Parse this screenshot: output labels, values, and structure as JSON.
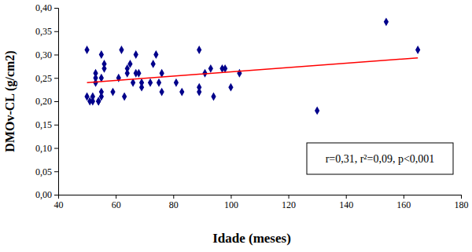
{
  "chart_data": {
    "type": "scatter",
    "x_label": "Idade (meses)",
    "y_label": "DMOv-CL (g/cm2)",
    "annotation": "r=0,31, r²=0,09, p<0,001",
    "xlim": [
      40,
      180
    ],
    "xticks": [
      40,
      60,
      80,
      100,
      120,
      140,
      160,
      180
    ],
    "ylim": [
      0,
      0.4
    ],
    "yticks": [
      {
        "value": 0,
        "label": "0,00"
      },
      {
        "value": 0.05,
        "label": "0,05"
      },
      {
        "value": 0.1,
        "label": "0,10"
      },
      {
        "value": 0.15,
        "label": "0,15"
      },
      {
        "value": 0.2,
        "label": "0,20"
      },
      {
        "value": 0.25,
        "label": "0,25"
      },
      {
        "value": 0.3,
        "label": "0,30"
      },
      {
        "value": 0.35,
        "label": "0,35"
      },
      {
        "value": 0.4,
        "label": "0,40"
      }
    ],
    "series": [
      {
        "type": "scatter",
        "color": "#00008b",
        "marker": "diamond",
        "x": [
          50,
          50,
          51,
          52,
          52,
          53,
          53,
          53,
          54,
          54,
          55,
          55,
          55,
          55,
          56,
          56,
          59,
          61,
          62,
          63,
          64,
          64,
          65,
          66,
          67,
          67,
          68,
          69,
          69,
          72,
          73,
          74,
          75,
          76,
          76,
          81,
          83,
          89,
          89,
          89,
          91,
          93,
          94,
          97,
          98,
          100,
          103,
          130,
          154,
          165
        ],
        "values": [
          0.21,
          0.31,
          0.2,
          0.21,
          0.2,
          0.24,
          0.25,
          0.26,
          0.2,
          0.2,
          0.21,
          0.25,
          0.3,
          0.22,
          0.27,
          0.28,
          0.22,
          0.25,
          0.31,
          0.21,
          0.26,
          0.27,
          0.28,
          0.24,
          0.26,
          0.3,
          0.26,
          0.23,
          0.24,
          0.24,
          0.28,
          0.3,
          0.24,
          0.26,
          0.22,
          0.24,
          0.22,
          0.31,
          0.23,
          0.22,
          0.26,
          0.27,
          0.21,
          0.27,
          0.27,
          0.23,
          0.26,
          0.18,
          0.37,
          0.31
        ]
      },
      {
        "type": "line",
        "color": "#ff0000",
        "line_style": "solid",
        "x": [
          50,
          165
        ],
        "values": [
          0.24,
          0.293
        ]
      }
    ]
  }
}
